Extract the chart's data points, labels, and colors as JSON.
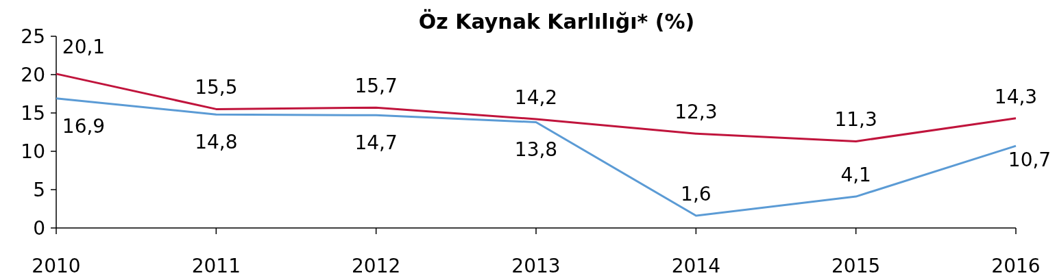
{
  "chart_data": {
    "type": "line",
    "title": "Öz Kaynak Karlılığı* (%)",
    "categories": [
      "2010",
      "2011",
      "2012",
      "2013",
      "2014",
      "2015",
      "2016"
    ],
    "series": [
      {
        "color": "#c0143c",
        "values": [
          20.1,
          15.5,
          15.7,
          14.2,
          12.3,
          11.3,
          14.3
        ],
        "value_labels": [
          "20,1",
          "15,5",
          "15,7",
          "14,2",
          "12,3",
          "11,3",
          "14,3"
        ]
      },
      {
        "color": "#5b9bd5",
        "values": [
          16.9,
          14.8,
          14.7,
          13.8,
          1.6,
          4.1,
          10.7
        ],
        "value_labels": [
          "16,9",
          "14,8",
          "14,7",
          "13,8",
          "1,6",
          "4,1",
          "10,7"
        ]
      }
    ],
    "ylim": [
      0,
      25
    ],
    "yticks": [
      0,
      5,
      10,
      15,
      20,
      25
    ],
    "grid": false,
    "marker": "none",
    "line_style": "solid"
  }
}
